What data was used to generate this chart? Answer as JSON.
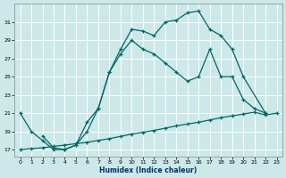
{
  "xlabel": "Humidex (Indice chaleur)",
  "bg_color": "#cce8e8",
  "grid_color": "#b8d8d8",
  "line_color": "#006666",
  "xlim": [
    -0.5,
    23.5
  ],
  "ylim": [
    16.2,
    33.0
  ],
  "yticks": [
    17,
    19,
    21,
    23,
    25,
    27,
    29,
    31
  ],
  "xticks": [
    0,
    1,
    2,
    3,
    4,
    5,
    6,
    7,
    8,
    9,
    10,
    11,
    12,
    13,
    14,
    15,
    16,
    17,
    18,
    19,
    20,
    21,
    22,
    23
  ],
  "curve1_x": [
    0,
    1,
    2,
    3,
    4,
    5,
    6,
    7,
    8,
    9,
    10,
    11,
    12,
    13,
    14,
    15,
    16,
    17,
    18,
    19,
    20,
    22
  ],
  "curve1_y": [
    21,
    19,
    18,
    17,
    17,
    17.5,
    19,
    21.5,
    25.5,
    28,
    30.2,
    30.0,
    29.5,
    31.0,
    31.2,
    32.0,
    32.2,
    30.2,
    29.5,
    28.0,
    25.0,
    21.0
  ],
  "curve2_x": [
    2,
    3,
    4,
    5,
    6,
    7,
    8,
    9,
    10,
    11,
    12,
    13,
    14,
    15,
    16,
    17,
    18,
    19,
    20,
    21,
    22
  ],
  "curve2_y": [
    18.5,
    17.2,
    17.0,
    17.5,
    20.0,
    21.5,
    25.5,
    27.5,
    29.0,
    28.0,
    27.5,
    26.5,
    25.5,
    24.5,
    25.0,
    28.0,
    25.0,
    25.0,
    22.5,
    21.5,
    21.0
  ],
  "curve3_x": [
    0,
    1,
    2,
    3,
    4,
    5,
    6,
    7,
    8,
    9,
    10,
    11,
    12,
    13,
    14,
    15,
    16,
    17,
    18,
    19,
    20,
    21,
    22,
    23
  ],
  "curve3_y": [
    17.0,
    17.1,
    17.2,
    17.35,
    17.5,
    17.65,
    17.8,
    18.0,
    18.2,
    18.45,
    18.7,
    18.9,
    19.1,
    19.35,
    19.6,
    19.8,
    20.0,
    20.25,
    20.5,
    20.7,
    20.9,
    21.1,
    20.8,
    21.0
  ]
}
